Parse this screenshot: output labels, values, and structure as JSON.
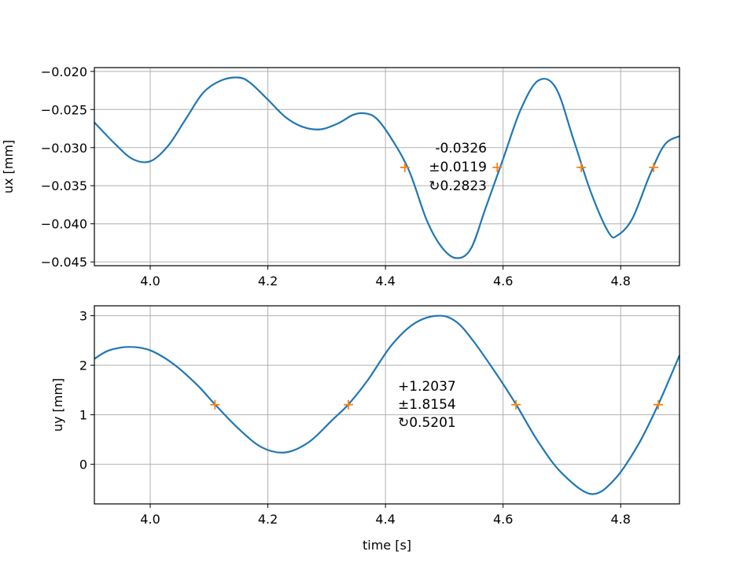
{
  "chart_data": [
    {
      "type": "line",
      "ylabel": "ux [mm]",
      "xlabel": "",
      "xlim": [
        3.905,
        4.9
      ],
      "ylim": [
        -0.0455,
        -0.0195
      ],
      "xticks": [
        4.0,
        4.2,
        4.4,
        4.6,
        4.8
      ],
      "xtick_labels": [
        "4.0",
        "4.2",
        "4.4",
        "4.6",
        "4.8"
      ],
      "yticks": [
        -0.02,
        -0.025,
        -0.03,
        -0.035,
        -0.04,
        -0.045
      ],
      "ytick_labels": [
        "−0.020",
        "−0.025",
        "−0.030",
        "−0.035",
        "−0.040",
        "−0.045"
      ],
      "grid": true,
      "series": [
        {
          "x": [
            3.905,
            3.94,
            3.97,
            4.0,
            4.03,
            4.06,
            4.09,
            4.12,
            4.15,
            4.17,
            4.2,
            4.23,
            4.26,
            4.29,
            4.32,
            4.345,
            4.365,
            4.385,
            4.41,
            4.44,
            4.47,
            4.495,
            4.52,
            4.545,
            4.57,
            4.6,
            4.63,
            4.66,
            4.69,
            4.72,
            4.75,
            4.78,
            4.795,
            4.82,
            4.85,
            4.875,
            4.9
          ],
          "y": [
            -0.0267,
            -0.0295,
            -0.0315,
            -0.0318,
            -0.0298,
            -0.0263,
            -0.0228,
            -0.0212,
            -0.0208,
            -0.0215,
            -0.0237,
            -0.026,
            -0.0273,
            -0.0276,
            -0.0268,
            -0.0257,
            -0.0255,
            -0.0262,
            -0.0288,
            -0.033,
            -0.0395,
            -0.043,
            -0.0445,
            -0.0433,
            -0.038,
            -0.0315,
            -0.025,
            -0.0212,
            -0.0222,
            -0.029,
            -0.036,
            -0.0412,
            -0.0415,
            -0.0393,
            -0.0335,
            -0.0296,
            -0.0285
          ]
        }
      ],
      "markers": {
        "x": [
          4.433,
          4.59,
          4.733,
          4.856
        ],
        "y": -0.0326
      },
      "annotation": [
        "-0.0326",
        "±0.0119",
        "↻0.2823"
      ]
    },
    {
      "type": "line",
      "ylabel": "uy [mm]",
      "xlabel": "time [s]",
      "xlim": [
        3.905,
        4.9
      ],
      "ylim": [
        -0.8,
        3.2
      ],
      "xticks": [
        4.0,
        4.2,
        4.4,
        4.6,
        4.8
      ],
      "xtick_labels": [
        "4.0",
        "4.2",
        "4.4",
        "4.6",
        "4.8"
      ],
      "yticks": [
        3,
        2,
        1,
        0
      ],
      "ytick_labels": [
        "3",
        "2",
        "1",
        "0"
      ],
      "grid": true,
      "series": [
        {
          "x": [
            3.905,
            3.93,
            3.965,
            4.0,
            4.04,
            4.08,
            4.11,
            4.15,
            4.19,
            4.23,
            4.27,
            4.31,
            4.337,
            4.37,
            4.41,
            4.45,
            4.49,
            4.52,
            4.55,
            4.59,
            4.622,
            4.66,
            4.7,
            4.75,
            4.79,
            4.83,
            4.864,
            4.9
          ],
          "y": [
            2.13,
            2.3,
            2.37,
            2.3,
            2.02,
            1.6,
            1.21,
            0.72,
            0.34,
            0.24,
            0.45,
            0.9,
            1.21,
            1.7,
            2.4,
            2.85,
            3.0,
            2.88,
            2.48,
            1.8,
            1.21,
            0.45,
            -0.18,
            -0.6,
            -0.3,
            0.4,
            1.21,
            2.2
          ]
        }
      ],
      "markers": {
        "x": [
          4.11,
          4.337,
          4.622,
          4.864
        ],
        "y": 1.2037
      },
      "annotation": [
        "+1.2037",
        "±1.8154",
        "↻0.5201"
      ]
    }
  ],
  "colors": {
    "line": "#1f77b4",
    "marker": "#ff7f0e",
    "grid": "#b0b0b0"
  }
}
